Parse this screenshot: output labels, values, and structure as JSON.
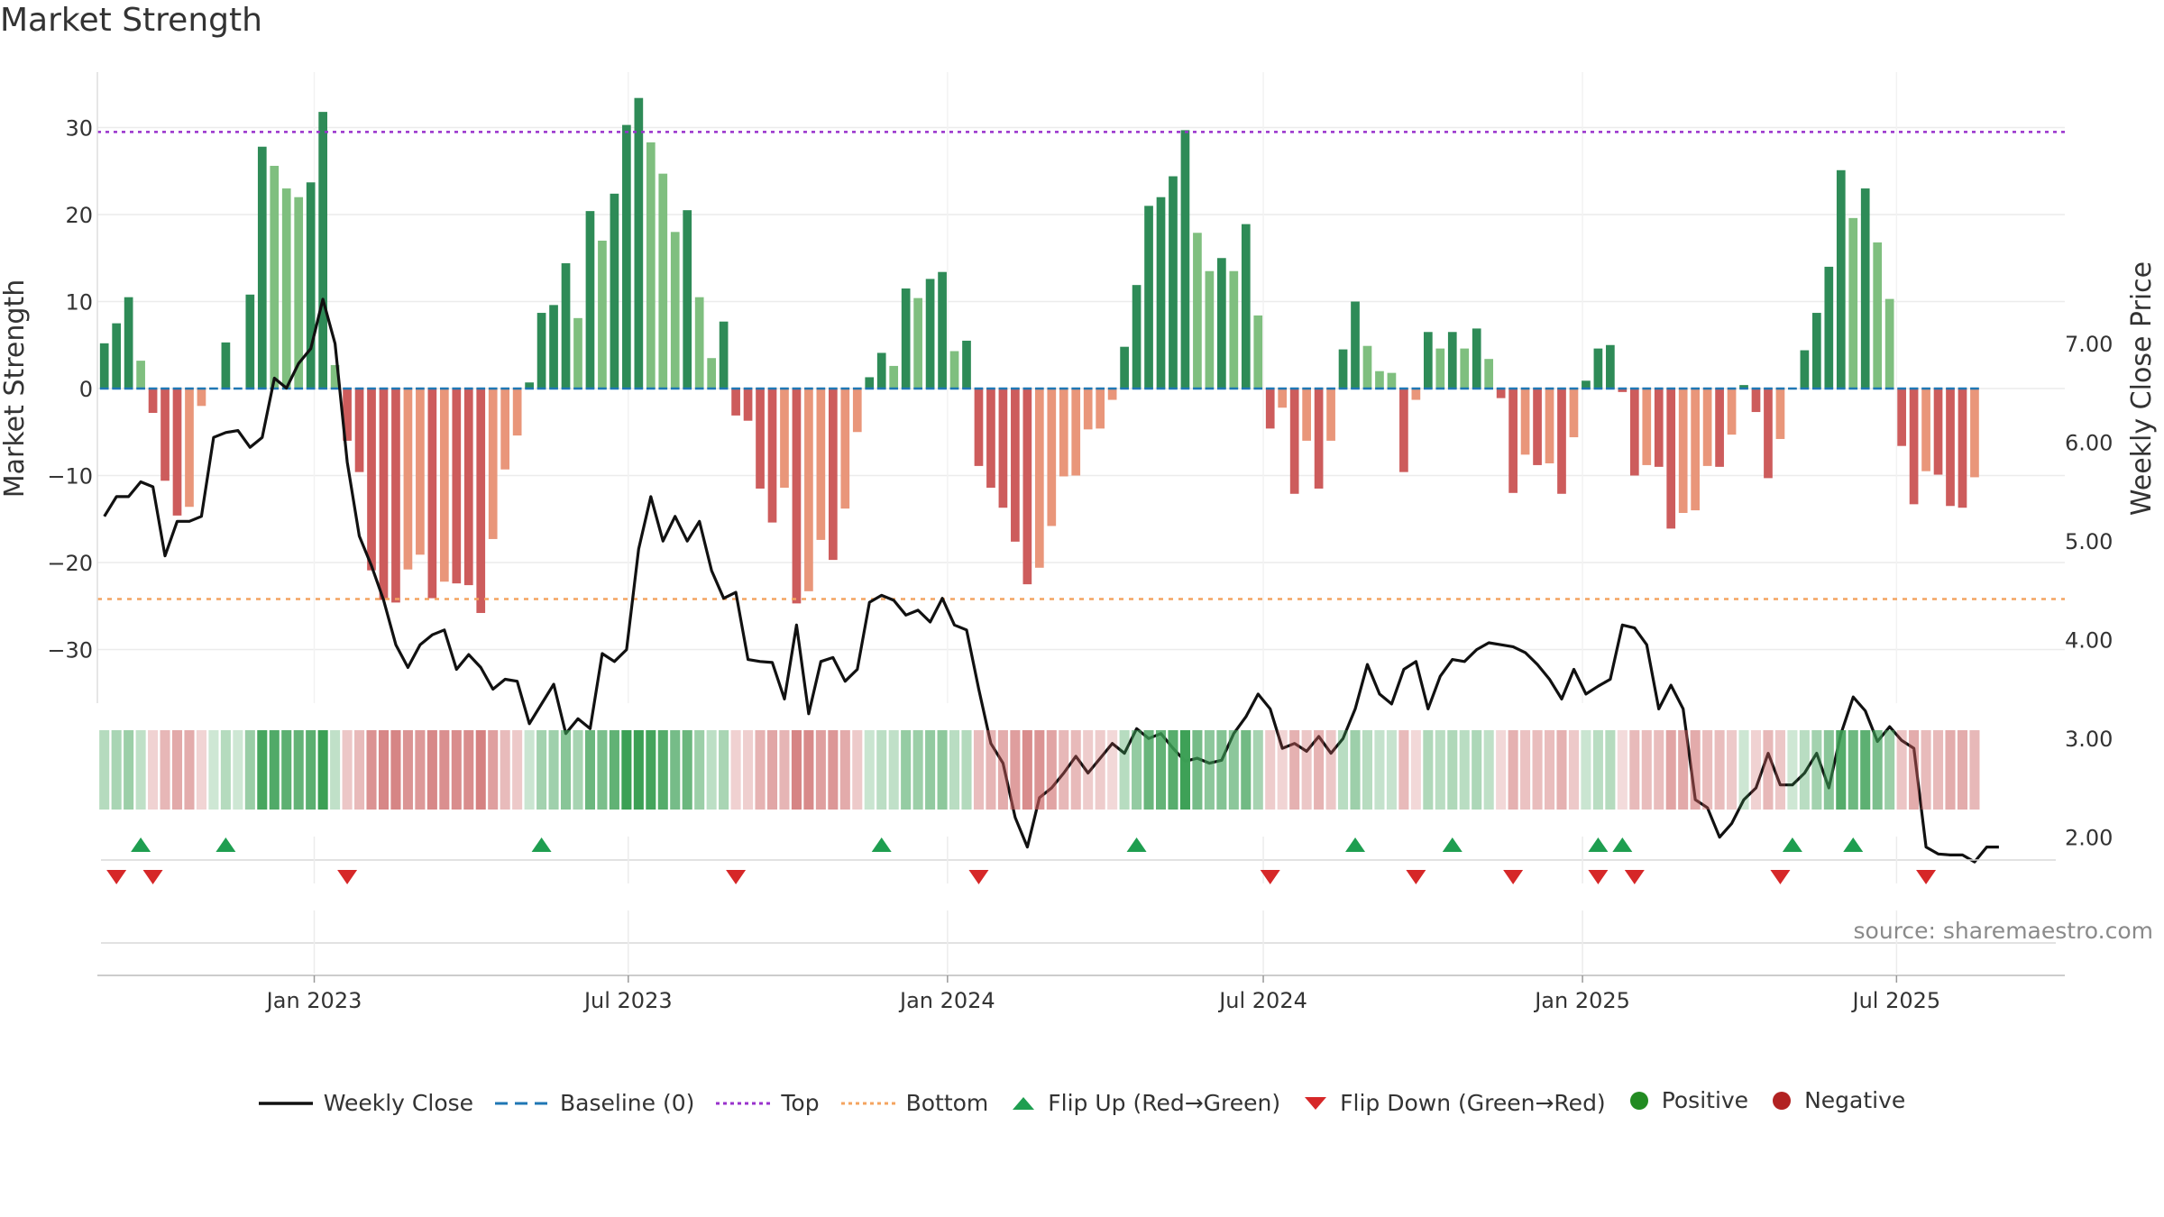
{
  "title": "Market Strength",
  "source": "source: sharemaestro.com",
  "colors": {
    "green_strong": "#2e8b57",
    "green_light": "#7fbf7f",
    "red_strong": "#cd5c5c",
    "red_light": "#e9967a",
    "line": "#111111",
    "baseline": "#1f77b4",
    "top": "#9932cc",
    "bottom": "#f4a460",
    "flip_up": "#1e9e50",
    "flip_down": "#d62728",
    "positive": "#228b22",
    "negative": "#b22222"
  },
  "legend": [
    {
      "key": "line",
      "label": "Weekly Close",
      "icon": "line-icon"
    },
    {
      "key": "baseline",
      "label": "Baseline (0)",
      "icon": "dashed-line-icon"
    },
    {
      "key": "top",
      "label": "Top",
      "icon": "dotted-line-icon"
    },
    {
      "key": "bottom",
      "label": "Bottom",
      "icon": "dotted-line-icon"
    },
    {
      "key": "flip_up",
      "label": "Flip Up (Red→Green)",
      "icon": "triangle-up-icon"
    },
    {
      "key": "flip_down",
      "label": "Flip Down (Green→Red)",
      "icon": "triangle-down-icon"
    },
    {
      "key": "positive",
      "label": "Positive",
      "icon": "circle-icon"
    },
    {
      "key": "negative",
      "label": "Negative",
      "icon": "circle-icon"
    }
  ],
  "chart_data": {
    "type": "bar",
    "title": "Market Strength",
    "ylabel": "Market Strength",
    "y2label": "Weekly Close Price",
    "ylim": [
      -36,
      36
    ],
    "y2lim": [
      1.45,
      7.75
    ],
    "yticks": [
      30,
      20,
      10,
      0,
      -10,
      -20,
      -30
    ],
    "ytick_labels": [
      "30",
      "20",
      "10",
      "0",
      "−10",
      "−20",
      "−30"
    ],
    "y2ticks": [
      7.0,
      6.0,
      5.0,
      4.0,
      3.0,
      2.0
    ],
    "y2tick_labels": [
      "7.00",
      "6.00",
      "5.00",
      "4.00",
      "3.00",
      "2.00"
    ],
    "top_level": 29.5,
    "bottom_level": -24.2,
    "x_start": "2022-08-29",
    "x_end": "2025-10-06",
    "xticks": [
      "2023-01-01",
      "2023-07-01",
      "2024-01-01",
      "2024-07-01",
      "2025-01-01",
      "2025-07-01"
    ],
    "xtick_labels": [
      "Jan 2023",
      "Jul 2023",
      "Jan 2024",
      "Jul 2024",
      "Jan 2025",
      "Jul 2025"
    ],
    "bars": {
      "start": "2022-09-02",
      "values": [
        5.2,
        7.5,
        10.5,
        3.2,
        -2.8,
        -10.6,
        -14.6,
        -13.6,
        -2.0,
        0.0,
        5.3,
        0.0,
        10.8,
        27.8,
        25.6,
        23.0,
        22.0,
        23.7,
        31.8,
        2.7,
        -6.0,
        -9.6,
        -20.9,
        -24.3,
        -24.6,
        -20.8,
        -19.1,
        -24.1,
        -22.2,
        -22.4,
        -22.6,
        -25.8,
        -17.3,
        -9.3,
        -5.4,
        0.7,
        8.7,
        9.6,
        14.4,
        8.1,
        20.4,
        17.0,
        22.4,
        30.3,
        33.4,
        28.3,
        24.7,
        18.0,
        20.5,
        10.5,
        3.5,
        7.7,
        -3.1,
        -3.7,
        -11.5,
        -15.4,
        -11.4,
        -24.7,
        -23.3,
        -17.4,
        -19.7,
        -13.8,
        -5.0,
        1.3,
        4.1,
        2.6,
        11.5,
        10.4,
        12.6,
        13.4,
        4.3,
        5.5,
        -8.9,
        -11.4,
        -13.7,
        -17.6,
        -22.5,
        -20.6,
        -15.8,
        -10.1,
        -10.0,
        -4.7,
        -4.6,
        -1.3,
        4.8,
        11.9,
        21.0,
        22.0,
        24.4,
        29.7,
        17.9,
        13.5,
        15.0,
        13.5,
        18.9,
        8.4,
        -4.6,
        -2.2,
        -12.1,
        -6.0,
        -11.5,
        -6.0,
        4.5,
        10.0,
        4.9,
        2.0,
        1.8,
        -9.6,
        -1.3,
        6.5,
        4.6,
        6.5,
        4.6,
        6.9,
        3.4,
        -1.1,
        -12.0,
        -7.6,
        -8.8,
        -8.6,
        -12.1,
        -5.6,
        0.9,
        4.6,
        5.0,
        -0.4,
        -10.0,
        -8.8,
        -9.0,
        -16.1,
        -14.3,
        -14.0,
        -8.9,
        -9.0,
        -5.3,
        0.4,
        -2.7,
        -10.3,
        -5.8,
        0.0,
        4.4,
        8.7,
        14.0,
        25.1,
        19.6,
        23.0,
        16.8,
        10.3,
        -6.6,
        -13.3,
        -9.5,
        -9.9,
        -13.5,
        -13.7,
        -10.2
      ]
    },
    "line": {
      "name": "Weekly Close",
      "start": "2022-09-02",
      "values": [
        5.25,
        5.45,
        5.45,
        5.6,
        5.55,
        4.85,
        5.2,
        5.2,
        5.25,
        6.05,
        6.1,
        6.12,
        5.95,
        6.05,
        6.65,
        6.55,
        6.8,
        6.95,
        7.45,
        7.0,
        5.8,
        5.05,
        4.75,
        4.4,
        3.95,
        3.72,
        3.95,
        4.05,
        4.1,
        3.7,
        3.85,
        3.72,
        3.5,
        3.6,
        3.58,
        3.15,
        3.35,
        3.55,
        3.05,
        3.2,
        3.1,
        3.86,
        3.78,
        3.9,
        4.92,
        5.45,
        5.0,
        5.25,
        5.0,
        5.2,
        4.7,
        4.42,
        4.48,
        3.8,
        3.78,
        3.77,
        3.4,
        4.15,
        3.25,
        3.78,
        3.82,
        3.58,
        3.7,
        4.38,
        4.45,
        4.4,
        4.25,
        4.3,
        4.18,
        4.42,
        4.15,
        4.1,
        3.5,
        2.95,
        2.75,
        2.2,
        1.9,
        2.4,
        2.5,
        2.65,
        2.82,
        2.65,
        2.8,
        2.95,
        2.85,
        3.1,
        3.0,
        3.05,
        2.9,
        2.77,
        2.8,
        2.75,
        2.78,
        3.05,
        3.22,
        3.45,
        3.3,
        2.9,
        2.95,
        2.87,
        3.02,
        2.85,
        3.0,
        3.3,
        3.75,
        3.45,
        3.35,
        3.7,
        3.78,
        3.3,
        3.63,
        3.8,
        3.78,
        3.9,
        3.97,
        3.95,
        3.93,
        3.87,
        3.75,
        3.6,
        3.4,
        3.7,
        3.45,
        3.53,
        3.6,
        4.15,
        4.12,
        3.95,
        3.3,
        3.54,
        3.3,
        2.38,
        2.3,
        2.0,
        2.14,
        2.38,
        2.5,
        2.85,
        2.53,
        2.53,
        2.65,
        2.85,
        2.5,
        3.05,
        3.42,
        3.28,
        2.97,
        3.12,
        2.98,
        2.9,
        1.9,
        1.83,
        1.82,
        1.82,
        1.75,
        1.9,
        1.9
      ]
    },
    "flip_up_weeks": [
      3,
      10,
      36,
      64,
      85,
      103,
      111,
      123,
      125,
      139,
      144
    ],
    "flip_down_weeks": [
      1,
      4,
      20,
      52,
      72,
      96,
      108,
      116,
      123,
      126,
      138,
      150
    ]
  }
}
